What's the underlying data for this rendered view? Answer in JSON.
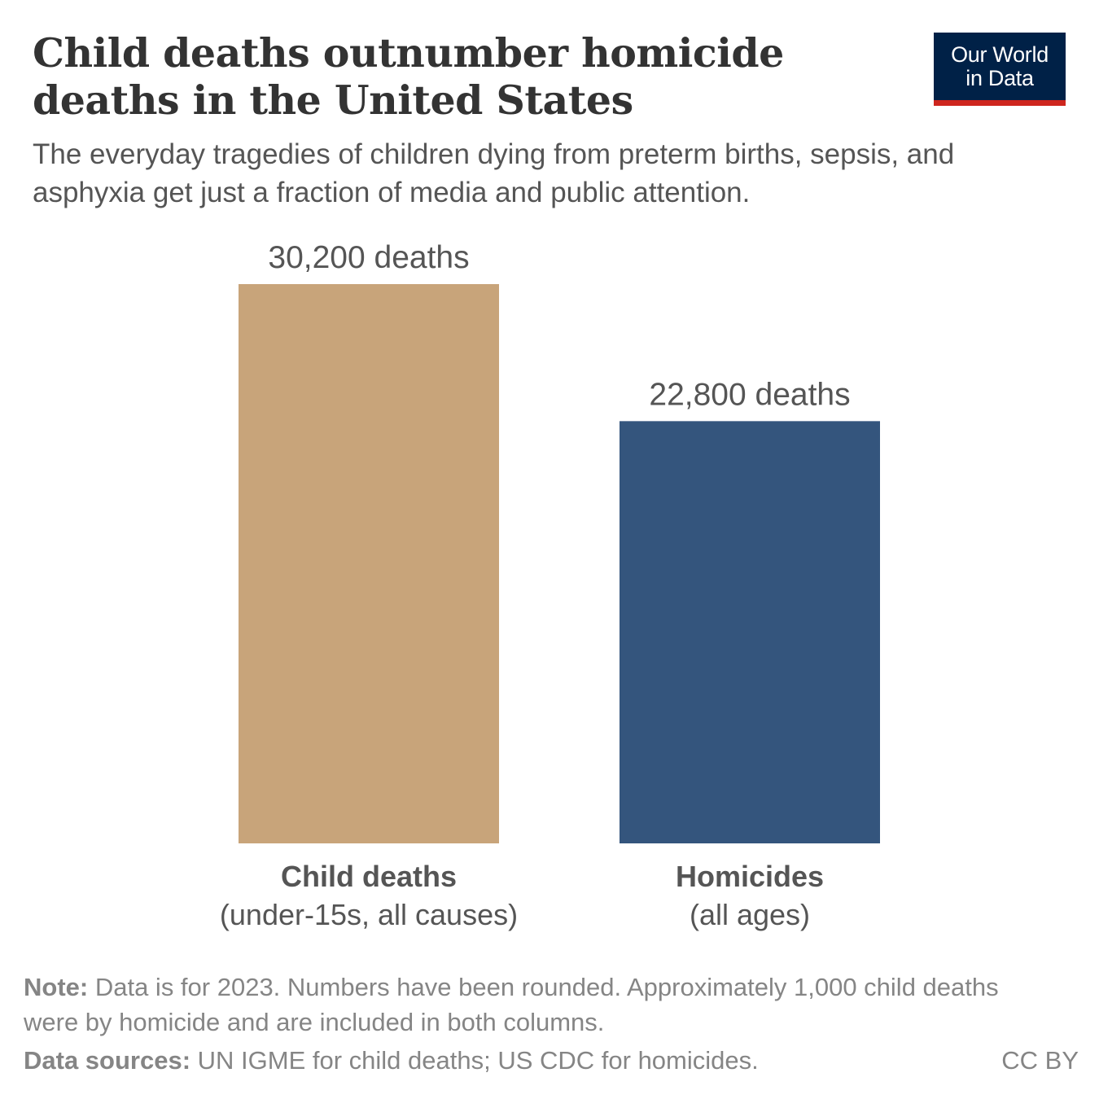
{
  "header": {
    "title": "Child deaths outnumber homicide deaths in the United States",
    "subtitle": "The everyday tragedies of children dying from preterm births, sepsis, and asphyxia get just a fraction of media and public attention."
  },
  "logo": {
    "line1": "Our World",
    "line2": "in Data",
    "background": "#002147",
    "accent": "#ce261e"
  },
  "chart_data": {
    "type": "bar",
    "title": "Child deaths outnumber homicide deaths in the United States",
    "categories": [
      "Child deaths",
      "Homicides"
    ],
    "category_sublabels": [
      "(under-15s, all causes)",
      "(all ages)"
    ],
    "values": [
      30200,
      22800
    ],
    "value_labels": [
      "30,200 deaths",
      "22,800 deaths"
    ],
    "colors": [
      "#c8a47a",
      "#34557d"
    ],
    "xlabel": "",
    "ylabel": "",
    "ylim": [
      0,
      30200
    ],
    "grid": false,
    "legend": "none"
  },
  "footer": {
    "note_label": "Note:",
    "note_text": " Data is for 2023. Numbers have been rounded. Approximately 1,000 child deaths were by homicide and are included in both columns.",
    "sources_label": "Data sources:",
    "sources_text": " UN IGME for child deaths; US CDC for homicides.",
    "license": "CC BY"
  }
}
